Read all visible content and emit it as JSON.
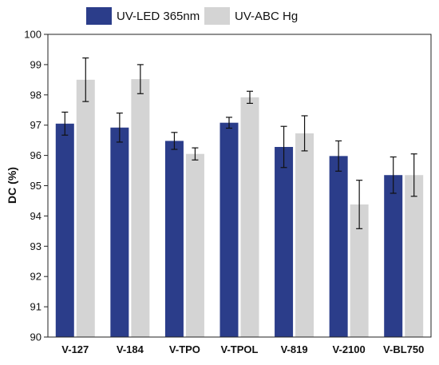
{
  "chart_data": {
    "type": "bar",
    "title": "",
    "xlabel": "",
    "ylabel": "DC (%)",
    "ylim": [
      90,
      100
    ],
    "yticks": [
      90,
      91,
      92,
      93,
      94,
      95,
      96,
      97,
      98,
      99,
      100
    ],
    "grid": false,
    "legend": "top",
    "categories": [
      "V-127",
      "V-184",
      "V-TPO",
      "V-TPOL",
      "V-819",
      "V-2100",
      "V-BL750"
    ],
    "series": [
      {
        "name": "UV-LED 365nm",
        "color": "#2b3d8a",
        "values": [
          97.05,
          96.92,
          96.48,
          97.08,
          96.28,
          95.98,
          95.35
        ],
        "errors": [
          0.38,
          0.48,
          0.28,
          0.18,
          0.68,
          0.5,
          0.6
        ]
      },
      {
        "name": "UV-ABC Hg",
        "color": "#d4d4d4",
        "values": [
          98.5,
          98.52,
          96.05,
          97.92,
          96.73,
          94.38,
          95.35
        ],
        "errors": [
          0.72,
          0.48,
          0.2,
          0.2,
          0.58,
          0.8,
          0.7
        ]
      }
    ]
  }
}
